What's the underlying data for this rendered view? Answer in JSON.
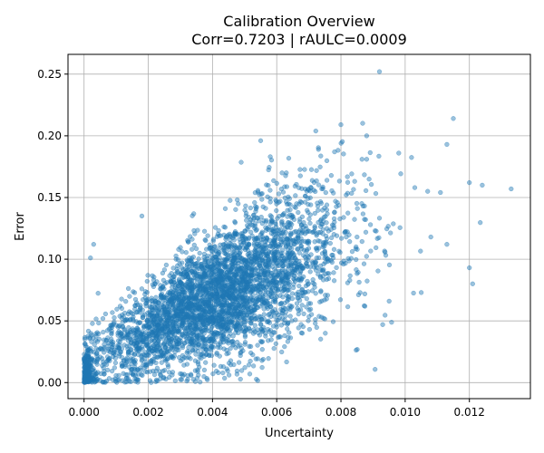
{
  "chart_data": {
    "type": "scatter",
    "title": "Calibration Overview",
    "subtitle": "Corr=0.7203 | rAULC=0.0009",
    "xlabel": "Uncertainty",
    "ylabel": "Error",
    "xlim": [
      -0.0005,
      0.0139
    ],
    "ylim": [
      -0.013,
      0.266
    ],
    "xticks": [
      0.0,
      0.002,
      0.004,
      0.006,
      0.008,
      0.01,
      0.012
    ],
    "xtick_labels": [
      "0.000",
      "0.002",
      "0.004",
      "0.006",
      "0.008",
      "0.010",
      "0.012"
    ],
    "yticks": [
      0.0,
      0.05,
      0.1,
      0.15,
      0.2,
      0.25
    ],
    "ytick_labels": [
      "0.00",
      "0.05",
      "0.10",
      "0.15",
      "0.20",
      "0.25"
    ],
    "grid": true,
    "legend": "none",
    "point_color": "#1f77b4",
    "point_alpha": 0.45,
    "n_points": 4000,
    "point_distribution": {
      "x_mean": 0.0042,
      "x_std": 0.0019,
      "slope": 13.0,
      "intercept": 0.015,
      "noise_std": 0.024,
      "near_zero_cluster_fraction": 0.04
    },
    "notable_points": [
      {
        "x": 0.0092,
        "y": 0.252
      },
      {
        "x": 0.0115,
        "y": 0.214
      },
      {
        "x": 0.008,
        "y": 0.209
      },
      {
        "x": 0.0088,
        "y": 0.2
      },
      {
        "x": 0.0055,
        "y": 0.196
      },
      {
        "x": 0.0113,
        "y": 0.193
      },
      {
        "x": 0.0073,
        "y": 0.189
      },
      {
        "x": 0.0078,
        "y": 0.187
      },
      {
        "x": 0.0098,
        "y": 0.186
      },
      {
        "x": 0.0058,
        "y": 0.183
      },
      {
        "x": 0.0088,
        "y": 0.181
      },
      {
        "x": 0.0063,
        "y": 0.17
      },
      {
        "x": 0.012,
        "y": 0.162
      },
      {
        "x": 0.0133,
        "y": 0.157
      },
      {
        "x": 0.0124,
        "y": 0.16
      },
      {
        "x": 0.0107,
        "y": 0.155
      },
      {
        "x": 0.0111,
        "y": 0.154
      },
      {
        "x": 0.0103,
        "y": 0.158
      },
      {
        "x": 0.0108,
        "y": 0.118
      },
      {
        "x": 0.0113,
        "y": 0.112
      },
      {
        "x": 0.012,
        "y": 0.093
      },
      {
        "x": 0.0121,
        "y": 0.08
      },
      {
        "x": 0.0105,
        "y": 0.073
      },
      {
        "x": 0.0095,
        "y": 0.066
      },
      {
        "x": 0.0093,
        "y": 0.047
      },
      {
        "x": 0.0068,
        "y": 0.04
      },
      {
        "x": 0.0072,
        "y": 0.048
      },
      {
        "x": 0.006,
        "y": 0.045
      },
      {
        "x": 0.0003,
        "y": 0.112
      },
      {
        "x": 0.0002,
        "y": 0.101
      },
      {
        "x": 0.0018,
        "y": 0.135
      }
    ]
  }
}
